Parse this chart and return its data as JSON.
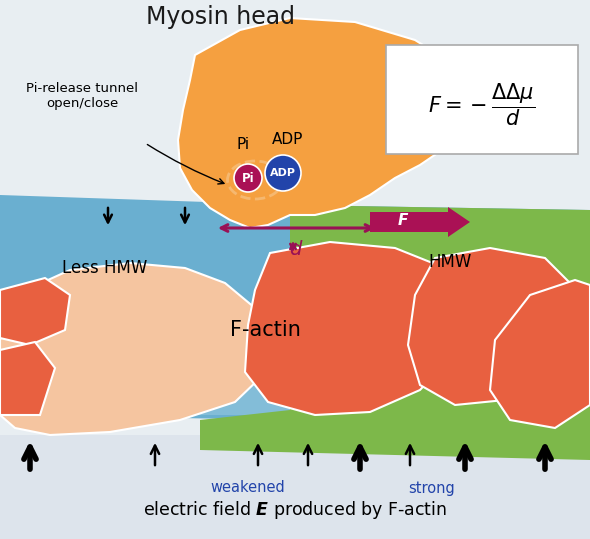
{
  "bg_color": "#e8eef2",
  "title": "Myosin head",
  "title_fontsize": 17,
  "title_color": "#1a1a1a",
  "less_hmw_label": "Less HMW",
  "hmw_label": "HMW",
  "factin_label": "F-actin",
  "pi_label": "Pi",
  "adp_label": "ADP",
  "tunnel_label": "Pi-release tunnel\nopen/close",
  "weakened_label": "weakened",
  "strong_label": "strong",
  "orange_color": "#F5A040",
  "blue_region_color": "#6AAFD0",
  "green_region_color": "#7DB84A",
  "salmon_color": "#E86040",
  "light_salmon": "#F5C5A0",
  "pi_color": "#AA1155",
  "adp_color": "#2244AA",
  "arrow_color": "#991155",
  "dashed_color": "#F5B870",
  "bottom_bg": "#dde4ec"
}
